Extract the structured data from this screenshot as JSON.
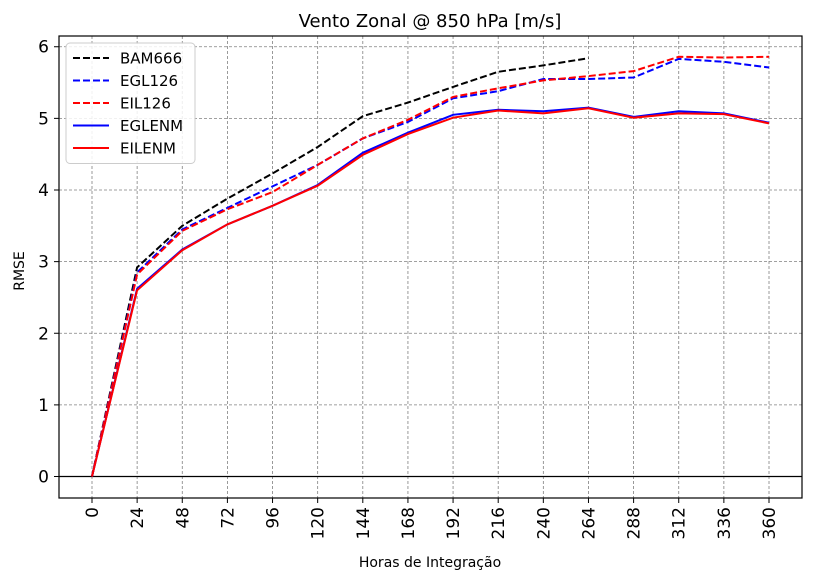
{
  "chart_data": {
    "type": "line",
    "title": "Vento Zonal @ 850 hPa [m/s]",
    "xlabel": "Horas de Integração",
    "ylabel": "RMSE",
    "categories": [
      "0",
      "24",
      "48",
      "72",
      "96",
      "120",
      "144",
      "168",
      "192",
      "216",
      "240",
      "264",
      "288",
      "312",
      "336",
      "360"
    ],
    "ylim": [
      -0.3,
      6.15
    ],
    "yticks": [
      0,
      1,
      2,
      3,
      4,
      5,
      6
    ],
    "grid": true,
    "legend_position": "top-left",
    "series": [
      {
        "name": "BAM666",
        "color": "#000000",
        "style": "dashed",
        "values": [
          0,
          2.92,
          3.5,
          3.88,
          4.23,
          4.6,
          5.03,
          5.22,
          5.44,
          5.65,
          5.74,
          5.84,
          null,
          null,
          null,
          null
        ]
      },
      {
        "name": "EGL126",
        "color": "#0000ff",
        "style": "dashed",
        "values": [
          0,
          2.85,
          3.45,
          3.75,
          4.05,
          4.35,
          4.72,
          4.95,
          5.28,
          5.38,
          5.55,
          5.55,
          5.57,
          5.83,
          5.79,
          5.71
        ]
      },
      {
        "name": "EIL126",
        "color": "#ff0000",
        "style": "dashed",
        "values": [
          0,
          2.82,
          3.43,
          3.73,
          3.97,
          4.35,
          4.72,
          4.98,
          5.3,
          5.42,
          5.53,
          5.59,
          5.66,
          5.86,
          5.85,
          5.86
        ]
      },
      {
        "name": "EGLENM",
        "color": "#0000ff",
        "style": "solid",
        "values": [
          0,
          2.62,
          3.17,
          3.52,
          3.78,
          4.07,
          4.52,
          4.8,
          5.05,
          5.12,
          5.1,
          5.15,
          5.02,
          5.1,
          5.07,
          4.94
        ]
      },
      {
        "name": "EILENM",
        "color": "#ff0000",
        "style": "solid",
        "values": [
          0,
          2.6,
          3.16,
          3.52,
          3.78,
          4.06,
          4.49,
          4.78,
          5.01,
          5.11,
          5.07,
          5.14,
          5.01,
          5.07,
          5.06,
          4.93
        ]
      }
    ]
  }
}
